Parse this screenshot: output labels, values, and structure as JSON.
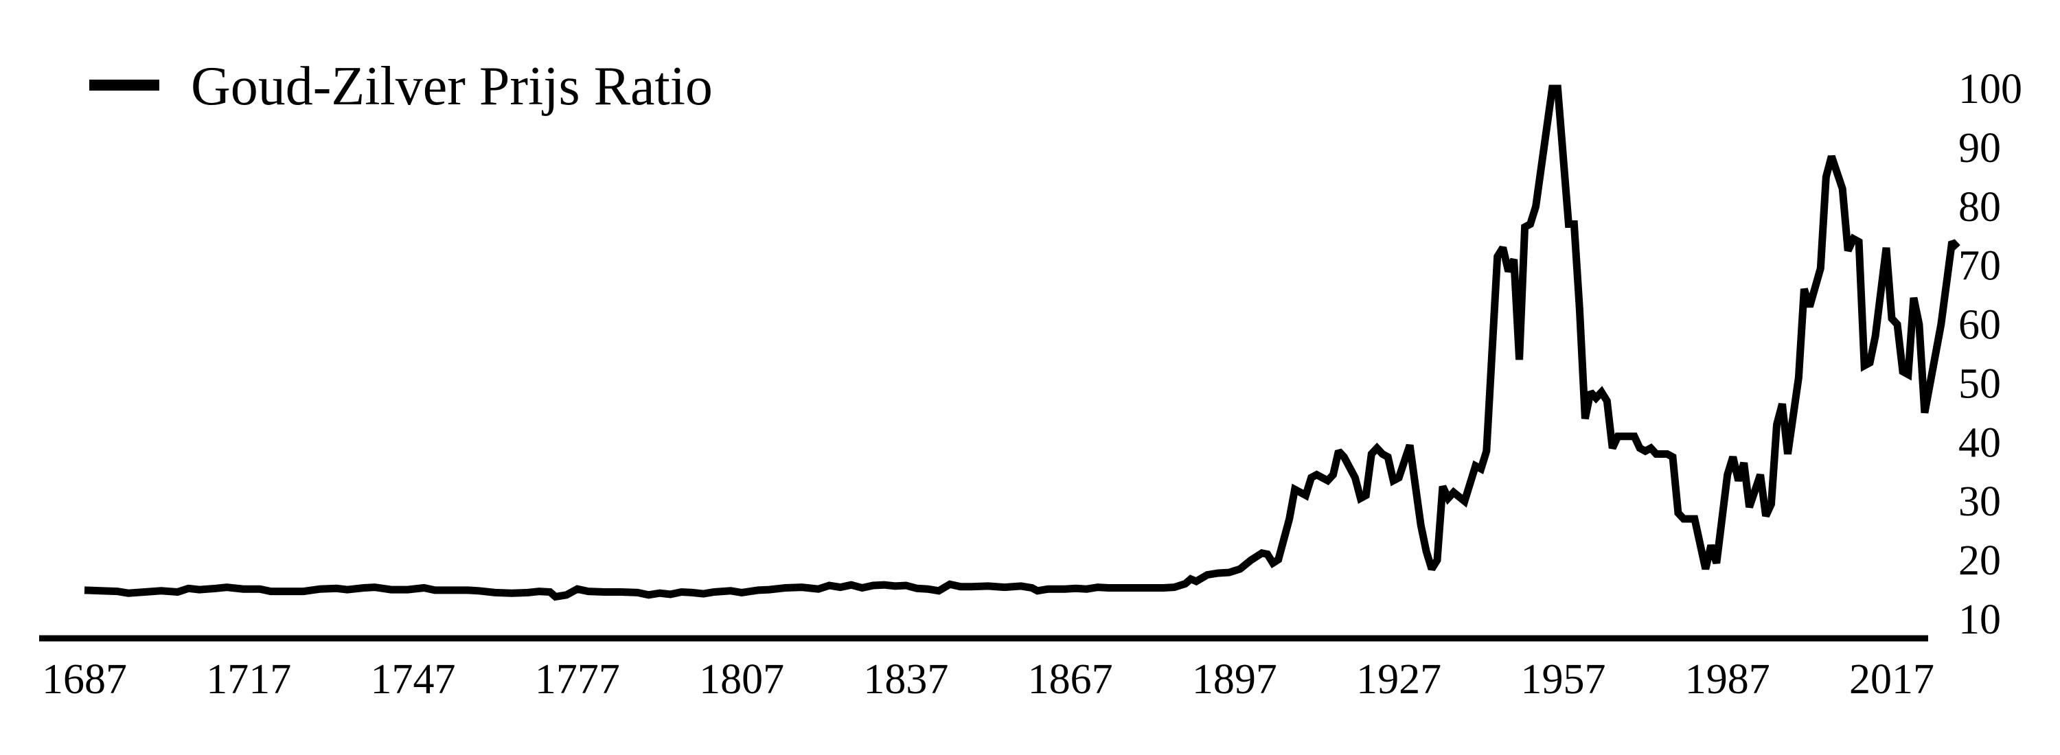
{
  "chart_data": {
    "type": "line",
    "title": "",
    "xlabel": "",
    "ylabel": "",
    "xlim": [
      1687,
      2017
    ],
    "ylim": [
      10,
      100
    ],
    "grid": false,
    "y_axis_side": "right",
    "legend": {
      "placement": "top-left"
    },
    "line_color": "#000000",
    "x_ticks": [
      "1687",
      "1717",
      "1747",
      "1777",
      "1807",
      "1837",
      "1867",
      "1897",
      "1927",
      "1957",
      "1987",
      "2017"
    ],
    "y_ticks": [
      "10",
      "20",
      "30",
      "40",
      "50",
      "60",
      "70",
      "80",
      "90",
      "100"
    ],
    "series": [
      {
        "name": "Goud-Zilver Prijs Ratio",
        "points": [
          [
            1687,
            14.9
          ],
          [
            1690,
            14.8
          ],
          [
            1693,
            14.7
          ],
          [
            1695,
            14.4
          ],
          [
            1698,
            14.6
          ],
          [
            1701,
            14.8
          ],
          [
            1704,
            14.6
          ],
          [
            1706,
            15.2
          ],
          [
            1708,
            15.0
          ],
          [
            1711,
            15.2
          ],
          [
            1713,
            15.4
          ],
          [
            1716,
            15.1
          ],
          [
            1719,
            15.1
          ],
          [
            1721,
            14.7
          ],
          [
            1724,
            14.7
          ],
          [
            1727,
            14.7
          ],
          [
            1730,
            15.1
          ],
          [
            1733,
            15.2
          ],
          [
            1735,
            15.0
          ],
          [
            1738,
            15.3
          ],
          [
            1740,
            15.4
          ],
          [
            1743,
            15.0
          ],
          [
            1746,
            15.0
          ],
          [
            1749,
            15.3
          ],
          [
            1751,
            14.9
          ],
          [
            1754,
            14.9
          ],
          [
            1757,
            14.9
          ],
          [
            1759,
            14.8
          ],
          [
            1762,
            14.5
          ],
          [
            1765,
            14.4
          ],
          [
            1768,
            14.5
          ],
          [
            1770,
            14.7
          ],
          [
            1772,
            14.6
          ],
          [
            1773,
            13.8
          ],
          [
            1775,
            14.1
          ],
          [
            1777,
            15.1
          ],
          [
            1779,
            14.7
          ],
          [
            1782,
            14.6
          ],
          [
            1785,
            14.6
          ],
          [
            1788,
            14.5
          ],
          [
            1790,
            14.1
          ],
          [
            1792,
            14.4
          ],
          [
            1794,
            14.2
          ],
          [
            1796,
            14.6
          ],
          [
            1798,
            14.5
          ],
          [
            1800,
            14.3
          ],
          [
            1802,
            14.6
          ],
          [
            1805,
            14.8
          ],
          [
            1807,
            14.5
          ],
          [
            1810,
            14.9
          ],
          [
            1812,
            15.0
          ],
          [
            1815,
            15.3
          ],
          [
            1818,
            15.4
          ],
          [
            1821,
            15.1
          ],
          [
            1823,
            15.7
          ],
          [
            1825,
            15.4
          ],
          [
            1827,
            15.8
          ],
          [
            1829,
            15.3
          ],
          [
            1831,
            15.7
          ],
          [
            1833,
            15.8
          ],
          [
            1835,
            15.6
          ],
          [
            1837,
            15.7
          ],
          [
            1839,
            15.2
          ],
          [
            1841,
            15.1
          ],
          [
            1843,
            14.8
          ],
          [
            1845,
            15.9
          ],
          [
            1847,
            15.5
          ],
          [
            1849,
            15.5
          ],
          [
            1852,
            15.6
          ],
          [
            1855,
            15.4
          ],
          [
            1858,
            15.6
          ],
          [
            1860,
            15.3
          ],
          [
            1861,
            14.8
          ],
          [
            1863,
            15.1
          ],
          [
            1866,
            15.1
          ],
          [
            1868,
            15.2
          ],
          [
            1870,
            15.1
          ],
          [
            1872,
            15.4
          ],
          [
            1874,
            15.3
          ],
          [
            1876,
            15.3
          ],
          [
            1878,
            15.3
          ],
          [
            1880,
            15.3
          ],
          [
            1882,
            15.3
          ],
          [
            1884,
            15.3
          ],
          [
            1886,
            15.4
          ],
          [
            1888,
            16.0
          ],
          [
            1889,
            16.8
          ],
          [
            1890,
            16.4
          ],
          [
            1892,
            17.5
          ],
          [
            1894,
            17.8
          ],
          [
            1896,
            17.9
          ],
          [
            1898,
            18.5
          ],
          [
            1900,
            20.0
          ],
          [
            1902,
            21.2
          ],
          [
            1903,
            21.0
          ],
          [
            1904,
            19.5
          ],
          [
            1905,
            20.1
          ],
          [
            1907,
            27.0
          ],
          [
            1908,
            32.0
          ],
          [
            1910,
            31.0
          ],
          [
            1911,
            34.0
          ],
          [
            1912,
            34.5
          ],
          [
            1914,
            33.5
          ],
          [
            1915,
            34.5
          ],
          [
            1916,
            38.5
          ],
          [
            1917,
            37.5
          ],
          [
            1919,
            34.0
          ],
          [
            1920,
            30.5
          ],
          [
            1921,
            31.0
          ],
          [
            1922,
            38.0
          ],
          [
            1923,
            39.0
          ],
          [
            1924,
            38.0
          ],
          [
            1925,
            37.5
          ],
          [
            1926,
            33.5
          ],
          [
            1927,
            34.0
          ],
          [
            1929,
            39.5
          ],
          [
            1931,
            26.0
          ],
          [
            1932,
            21.5
          ],
          [
            1933,
            18.5
          ],
          [
            1934,
            20.0
          ],
          [
            1935,
            32.5
          ],
          [
            1936,
            30.5
          ],
          [
            1937,
            31.5
          ],
          [
            1939,
            30.0
          ],
          [
            1941,
            36.0
          ],
          [
            1942,
            35.5
          ],
          [
            1943,
            38.5
          ],
          [
            1945,
            71.5
          ],
          [
            1946,
            73.0
          ],
          [
            1947,
            69.0
          ],
          [
            1948,
            71.0
          ],
          [
            1949,
            54.0
          ],
          [
            1950,
            76.5
          ],
          [
            1951,
            77.0
          ],
          [
            1952,
            80.0
          ],
          [
            1955,
            100.0
          ],
          [
            1956,
            100.0
          ],
          [
            1958,
            77.0
          ],
          [
            1959,
            77.0
          ],
          [
            1960,
            62.5
          ],
          [
            1961,
            44.0
          ],
          [
            1962,
            48.5
          ],
          [
            1963,
            47.5
          ],
          [
            1964,
            48.5
          ],
          [
            1965,
            47.0
          ],
          [
            1966,
            39.0
          ],
          [
            1967,
            41.0
          ],
          [
            1969,
            41.0
          ],
          [
            1970,
            41.0
          ],
          [
            1971,
            39.0
          ],
          [
            1972,
            38.5
          ],
          [
            1973,
            39.0
          ],
          [
            1974,
            38.0
          ],
          [
            1976,
            38.0
          ],
          [
            1977,
            37.5
          ],
          [
            1978,
            28.0
          ],
          [
            1979,
            27.0
          ],
          [
            1980,
            27.0
          ],
          [
            1981,
            27.0
          ],
          [
            1983,
            18.5
          ],
          [
            1984,
            22.5
          ],
          [
            1985,
            19.5
          ],
          [
            1987,
            34.5
          ],
          [
            1988,
            37.5
          ],
          [
            1989,
            33.5
          ],
          [
            1990,
            36.5
          ],
          [
            1991,
            29.0
          ],
          [
            1993,
            34.5
          ],
          [
            1994,
            27.5
          ],
          [
            1995,
            29.5
          ],
          [
            1996,
            43.0
          ],
          [
            1997,
            46.5
          ],
          [
            1998,
            38.0
          ],
          [
            2000,
            51.0
          ],
          [
            2001,
            66.0
          ],
          [
            2002,
            63.0
          ],
          [
            2004,
            69.5
          ],
          [
            2005,
            85.0
          ],
          [
            2006,
            88.5
          ],
          [
            2008,
            83.0
          ],
          [
            2009,
            72.5
          ],
          [
            2010,
            74.5
          ],
          [
            2011,
            74.0
          ],
          [
            2012,
            53.0
          ],
          [
            2013,
            53.5
          ],
          [
            2014,
            58.0
          ],
          [
            2016,
            73.0
          ],
          [
            2017,
            61.0
          ],
          [
            2018,
            60.0
          ],
          [
            2019,
            52.0
          ],
          [
            2020,
            51.5
          ],
          [
            2021,
            64.5
          ],
          [
            2022,
            60.0
          ],
          [
            2023,
            45.0
          ],
          [
            2026,
            60.0
          ],
          [
            2028,
            74.0
          ],
          [
            2029,
            73.0
          ]
        ]
      }
    ]
  }
}
